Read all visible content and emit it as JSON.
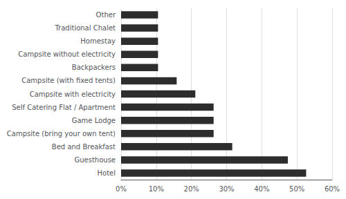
{
  "chart_data": {
    "type": "bar",
    "orientation": "horizontal",
    "categories": [
      "Hotel",
      "Guesthouse",
      "Bed and Breakfast",
      "Campsite (bring your own tent)",
      "Game Lodge",
      "Self Catering Flat / Apartment",
      "Campsite with electricity",
      "Campsite (with fixed tents)",
      "Backpackers",
      "Campsite without electricity",
      "Homestay",
      "Traditional Chalet",
      "Other"
    ],
    "values": [
      0.526,
      0.474,
      0.316,
      0.263,
      0.263,
      0.263,
      0.211,
      0.158,
      0.105,
      0.105,
      0.105,
      0.105,
      0.105
    ],
    "color": "#2d2d2d",
    "xlim": [
      0,
      0.6
    ],
    "xticks": [
      {
        "value": 0,
        "label": "0%"
      },
      {
        "value": 0.1,
        "label": "10%"
      },
      {
        "value": 0.2,
        "label": "20%"
      },
      {
        "value": 0.3,
        "label": "30%"
      },
      {
        "value": 0.4,
        "label": "40%"
      },
      {
        "value": 0.5,
        "label": "50%"
      },
      {
        "value": 0.6,
        "label": "60%"
      }
    ],
    "grid": true
  }
}
